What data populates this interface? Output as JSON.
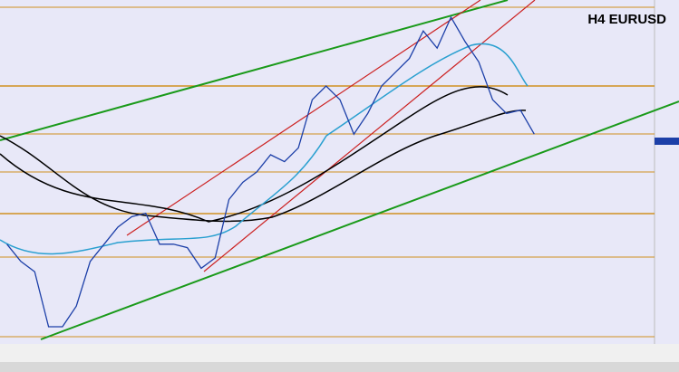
{
  "chart_data": {
    "type": "line",
    "title": "H4 EURUSD",
    "categories": [
      null,
      null,
      null,
      null,
      null,
      null,
      null,
      null,
      null,
      null,
      null,
      null,
      null,
      null,
      null,
      null,
      null,
      null,
      null,
      null,
      null,
      null,
      null,
      null,
      null,
      null,
      null,
      null,
      null,
      null,
      null,
      null,
      null,
      null,
      null,
      null,
      null,
      null,
      null
    ],
    "values": [
      29,
      24,
      21,
      5,
      5,
      11,
      24,
      29,
      34,
      37,
      38,
      29,
      29,
      28,
      22,
      25,
      42,
      47,
      50,
      55,
      53,
      57,
      71,
      75,
      71,
      61,
      67,
      75,
      79,
      83,
      91,
      86,
      95,
      88,
      82,
      71,
      67,
      68,
      61
    ],
    "color": "#1c3fa8",
    "ylim": [
      0,
      100
    ]
  }
}
